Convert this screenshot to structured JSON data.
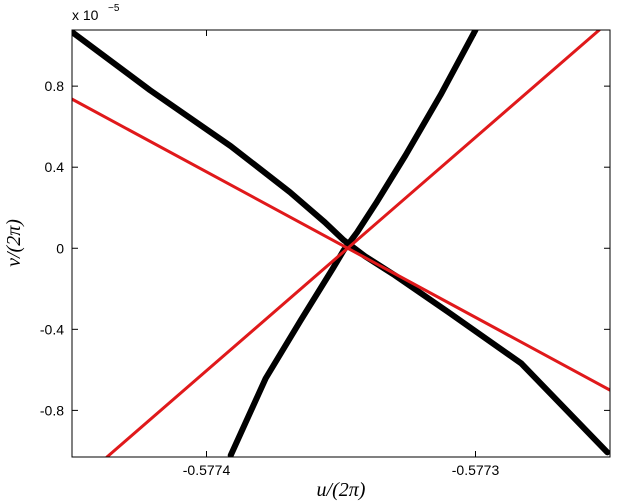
{
  "chart_data": {
    "type": "line",
    "x_label": "u/(2π)",
    "y_label": "v/(2π)",
    "y_exponent_base": "x 10",
    "y_exponent": "−5",
    "xlim": [
      -0.57745,
      -0.57725
    ],
    "ylim": [
      -1.03,
      1.077
    ],
    "xticks": [
      -0.5774,
      -0.5773
    ],
    "yticks": [
      -0.8,
      -0.4,
      0,
      0.4,
      0.8
    ],
    "grid": false,
    "series": [
      {
        "color": "#000000",
        "width": 6,
        "x": [
          -0.57745,
          -0.577421,
          -0.577391,
          -0.577369,
          -0.577356,
          -0.577349,
          -0.577341,
          -0.57733,
          -0.57731,
          -0.577283,
          -0.577251
        ],
        "values": [
          1.067,
          0.78,
          0.504,
          0.277,
          0.128,
          0.04,
          -0.04,
          -0.133,
          -0.316,
          -0.568,
          -1.007
        ]
      },
      {
        "color": "#000000",
        "width": 6,
        "x": [
          -0.5773,
          -0.577313,
          -0.577326,
          -0.577337,
          -0.577344,
          -0.577349,
          -0.577353,
          -0.577365,
          -0.577378,
          -0.577391
        ],
        "values": [
          1.077,
          0.756,
          0.459,
          0.222,
          0.079,
          -0.01,
          -0.099,
          -0.356,
          -0.642,
          -1.022
        ]
      },
      {
        "color": "#e0191b",
        "width": 3,
        "x": [
          -0.57745,
          -0.57725
        ],
        "values": [
          0.736,
          -0.7
        ]
      },
      {
        "color": "#e0191b",
        "width": 3,
        "x": [
          -0.577437,
          -0.577254
        ],
        "values": [
          -1.03,
          1.077
        ]
      }
    ]
  }
}
